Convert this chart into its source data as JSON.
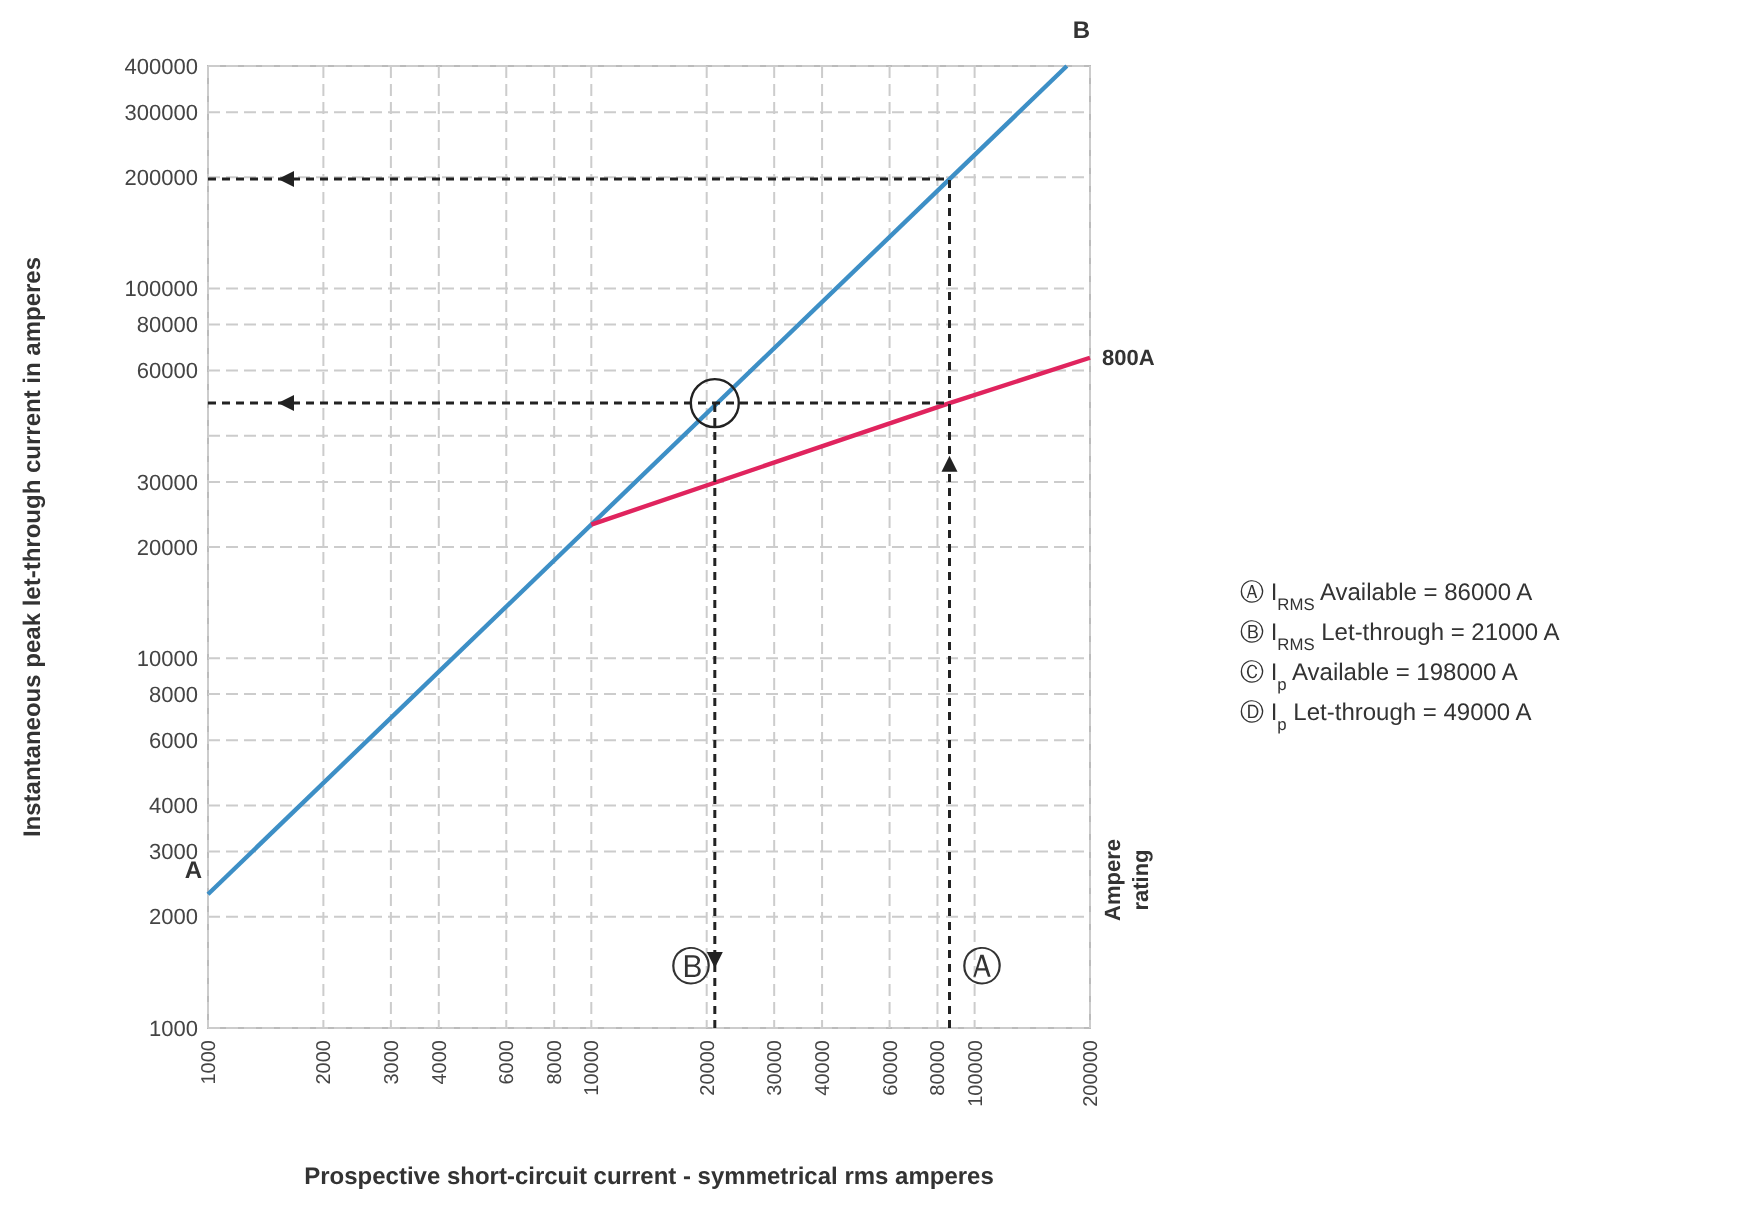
{
  "chart_data": {
    "type": "line",
    "xlabel": "Prospective short-circuit current - symmetrical rms amperes",
    "ylabel": "Instantaneous peak let-through current in amperes",
    "log": "xy",
    "grid": true,
    "xlim": [
      1000,
      200000
    ],
    "ylim": [
      1000,
      400000
    ],
    "xticks": [
      1000,
      2000,
      3000,
      4000,
      6000,
      8000,
      10000,
      20000,
      30000,
      40000,
      60000,
      80000,
      100000,
      200000
    ],
    "yticks": [
      1000,
      2000,
      3000,
      4000,
      6000,
      8000,
      10000,
      20000,
      30000,
      {
        "value": 40000,
        "label": null
      },
      60000,
      80000,
      100000,
      200000,
      300000,
      400000
    ],
    "series": [
      {
        "x": [
          1000,
          174000
        ],
        "values": [
          2300,
          400000
        ],
        "color": "#3d8fc6",
        "line_style": "solid"
      },
      {
        "name": "800A",
        "x": [
          10000,
          86000,
          200000
        ],
        "values": [
          23000,
          49000,
          65000
        ],
        "color": "#e0245e",
        "line_style": "solid"
      },
      {
        "x": [
          1000,
          86000
        ],
        "values": [
          198000,
          198000
        ],
        "color": "#222222",
        "line_style": "dashed"
      },
      {
        "x": [
          1000,
          86000
        ],
        "values": [
          49000,
          49000
        ],
        "color": "#222222",
        "line_style": "dashed"
      },
      {
        "x": [
          86000,
          86000
        ],
        "values": [
          1000,
          198000
        ],
        "color": "#222222",
        "line_style": "dashed"
      },
      {
        "x": [
          21000,
          21000
        ],
        "values": [
          1000,
          49000
        ],
        "color": "#222222",
        "line_style": "dashed"
      }
    ],
    "annotations": [
      {
        "text": "A",
        "x": 1000,
        "y": 2300
      },
      {
        "text": "B",
        "x": 174000,
        "y": 400000
      },
      {
        "text": "Ⓑ",
        "x": 21000,
        "y": 1000
      },
      {
        "text": "Ⓐ",
        "x": 86000,
        "y": 1000
      },
      "Ampere rating",
      "Ⓐ I$_{RMS}$ Available = 86000 A",
      "Ⓑ I$_{RMS}$ Let-through = 21000 A",
      "Ⓒ I$_{p}$ Available = 198000 A",
      "Ⓓ I$_{p}$ Let-through = 49000 A"
    ]
  }
}
